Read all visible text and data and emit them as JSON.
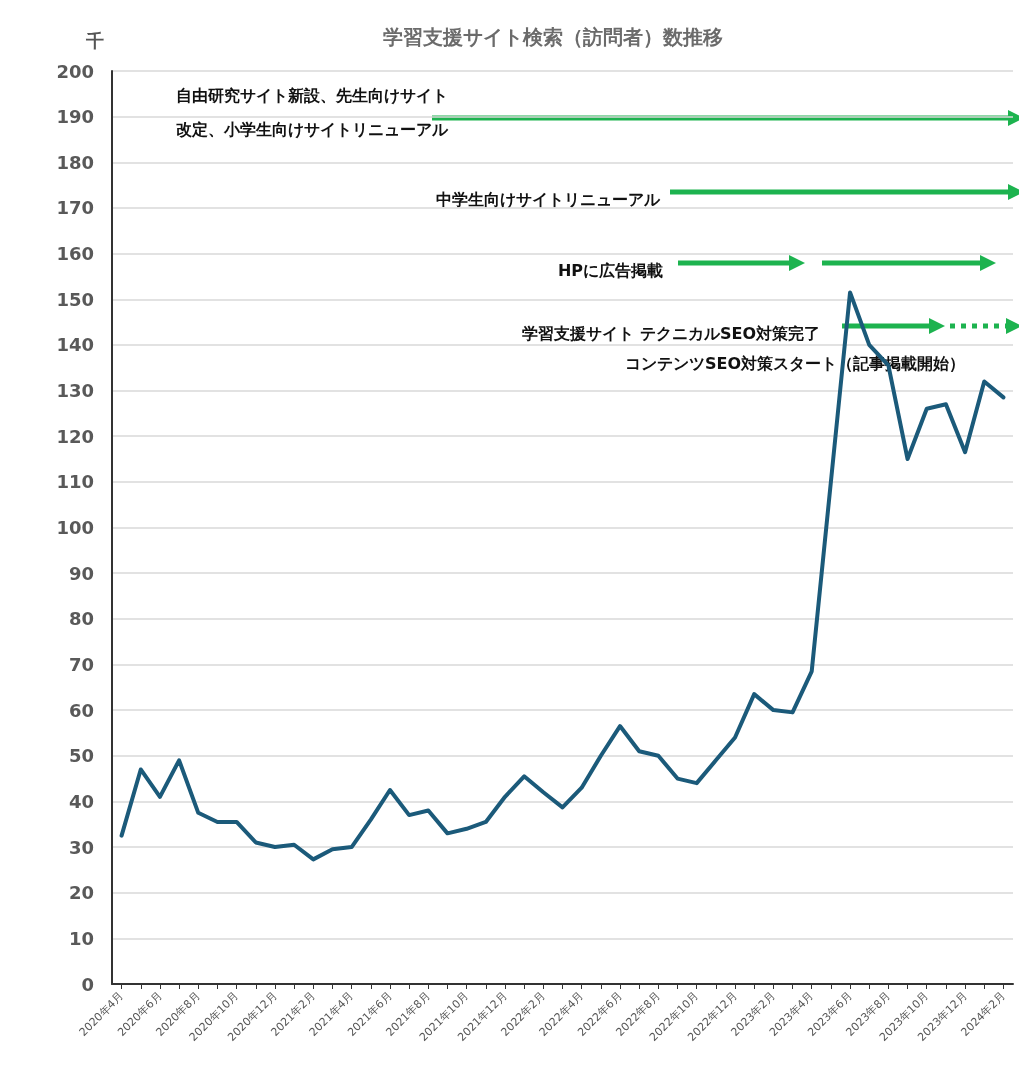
{
  "chart_data": {
    "type": "line",
    "title": "学習支援サイト検索（訪問者）数推移",
    "ylabel": "千",
    "categories": [
      "2020年4月",
      null,
      "2020年6月",
      null,
      "2020年8月",
      null,
      "2020年10月",
      null,
      "2020年12月",
      null,
      "2021年2月",
      null,
      "2021年4月",
      null,
      "2021年6月",
      null,
      "2021年8月",
      null,
      "2021年10月",
      null,
      "2021年12月",
      null,
      "2022年2月",
      null,
      "2022年4月",
      null,
      "2022年6月",
      null,
      "2022年8月",
      null,
      "2022年10月",
      null,
      "2022年12月",
      null,
      "2023年2月",
      null,
      "2023年4月",
      null,
      "2023年6月",
      null,
      "2023年8月",
      null,
      "2023年10月",
      null,
      "2023年12月",
      null,
      "2024年2月"
    ],
    "series": [
      {
        "color": "#1b5a7a",
        "values": [
          32.5,
          47,
          41,
          49,
          37.5,
          35.5,
          35.5,
          31,
          30,
          30.5,
          27.3,
          29.5,
          30,
          36,
          42.5,
          37,
          38,
          33,
          34,
          35.5,
          41,
          45.5,
          42,
          38.7,
          43,
          50,
          56.5,
          51,
          50,
          45,
          44,
          49,
          54,
          63.5,
          60,
          59.5,
          68.5,
          110,
          151.5,
          140,
          135.5,
          115,
          126,
          127,
          116.5,
          132,
          128.5
        ]
      }
    ],
    "ylim": [
      0,
      200
    ],
    "yticks": [
      0,
      10,
      20,
      30,
      40,
      50,
      60,
      70,
      80,
      90,
      100,
      110,
      120,
      130,
      140,
      150,
      160,
      170,
      180,
      190,
      200
    ],
    "grid": "y",
    "marker": "none",
    "line_style": "solid",
    "annotations": [
      "自由研究サイト新設、先生向けサイト改定、小学生向けサイトリニューアル",
      "中学生向けサイトリニューアル",
      "HPに広告掲載",
      "学習支援サイト テクニカルSEO対策完了",
      "コンテンツSEO対策スタート（記事掲載開始）"
    ]
  }
}
